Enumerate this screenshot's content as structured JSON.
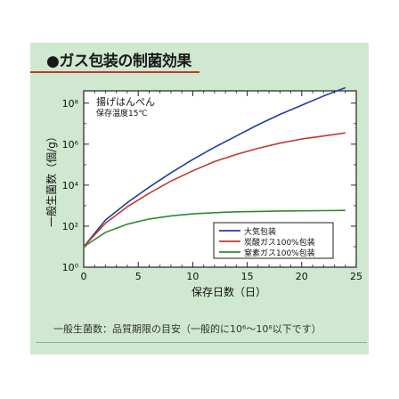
{
  "title": "●ガス包装の制菌効果",
  "footnote": "一般生菌数：品質期限の目安（一般的に10⁶〜10⁸以下です）",
  "colors": {
    "panel_bg": "#cfe8cf",
    "plot_bg": "#ffffff",
    "air": "#1a3fa0",
    "co2_100": "#c0392b",
    "n2_100": "#2e8b2e"
  },
  "chart_data": {
    "type": "line",
    "annotation": [
      "揚げはんぺん",
      "保存温度15℃"
    ],
    "xlabel": "保存日数（日）",
    "ylabel": "一般生菌数（個/g）",
    "x_ticks": [
      0,
      5,
      10,
      15,
      20,
      25
    ],
    "x_tick_labels": [
      "0",
      "5",
      "10",
      "15",
      "20",
      "25"
    ],
    "y_ticks": [
      0,
      2,
      4,
      6,
      8
    ],
    "y_tick_labels": [
      "10⁰",
      "10²",
      "10⁴",
      "10⁶",
      "10⁸"
    ],
    "xlim": [
      0,
      24
    ],
    "ylim": [
      0,
      8.6
    ],
    "y_scale": "log10 (values are exponents)",
    "grid": false,
    "legend_position": "bottom-right",
    "x": [
      0,
      2,
      4,
      6,
      8,
      10,
      12,
      14,
      16,
      18,
      20,
      22,
      24
    ],
    "series": [
      {
        "name": "大気包装",
        "color": "#1a3fa0",
        "values": [
          1.0,
          2.3,
          3.15,
          3.9,
          4.6,
          5.25,
          5.85,
          6.4,
          6.95,
          7.45,
          7.9,
          8.35,
          8.75
        ]
      },
      {
        "name": "炭酸ガス100%包装",
        "color": "#c0392b",
        "values": [
          1.0,
          2.15,
          2.95,
          3.6,
          4.2,
          4.7,
          5.15,
          5.5,
          5.8,
          6.05,
          6.25,
          6.4,
          6.55
        ]
      },
      {
        "name": "窒素ガス100%包装",
        "color": "#2e8b2e",
        "values": [
          1.0,
          1.7,
          2.1,
          2.35,
          2.5,
          2.6,
          2.66,
          2.7,
          2.72,
          2.74,
          2.75,
          2.76,
          2.77
        ]
      }
    ]
  }
}
